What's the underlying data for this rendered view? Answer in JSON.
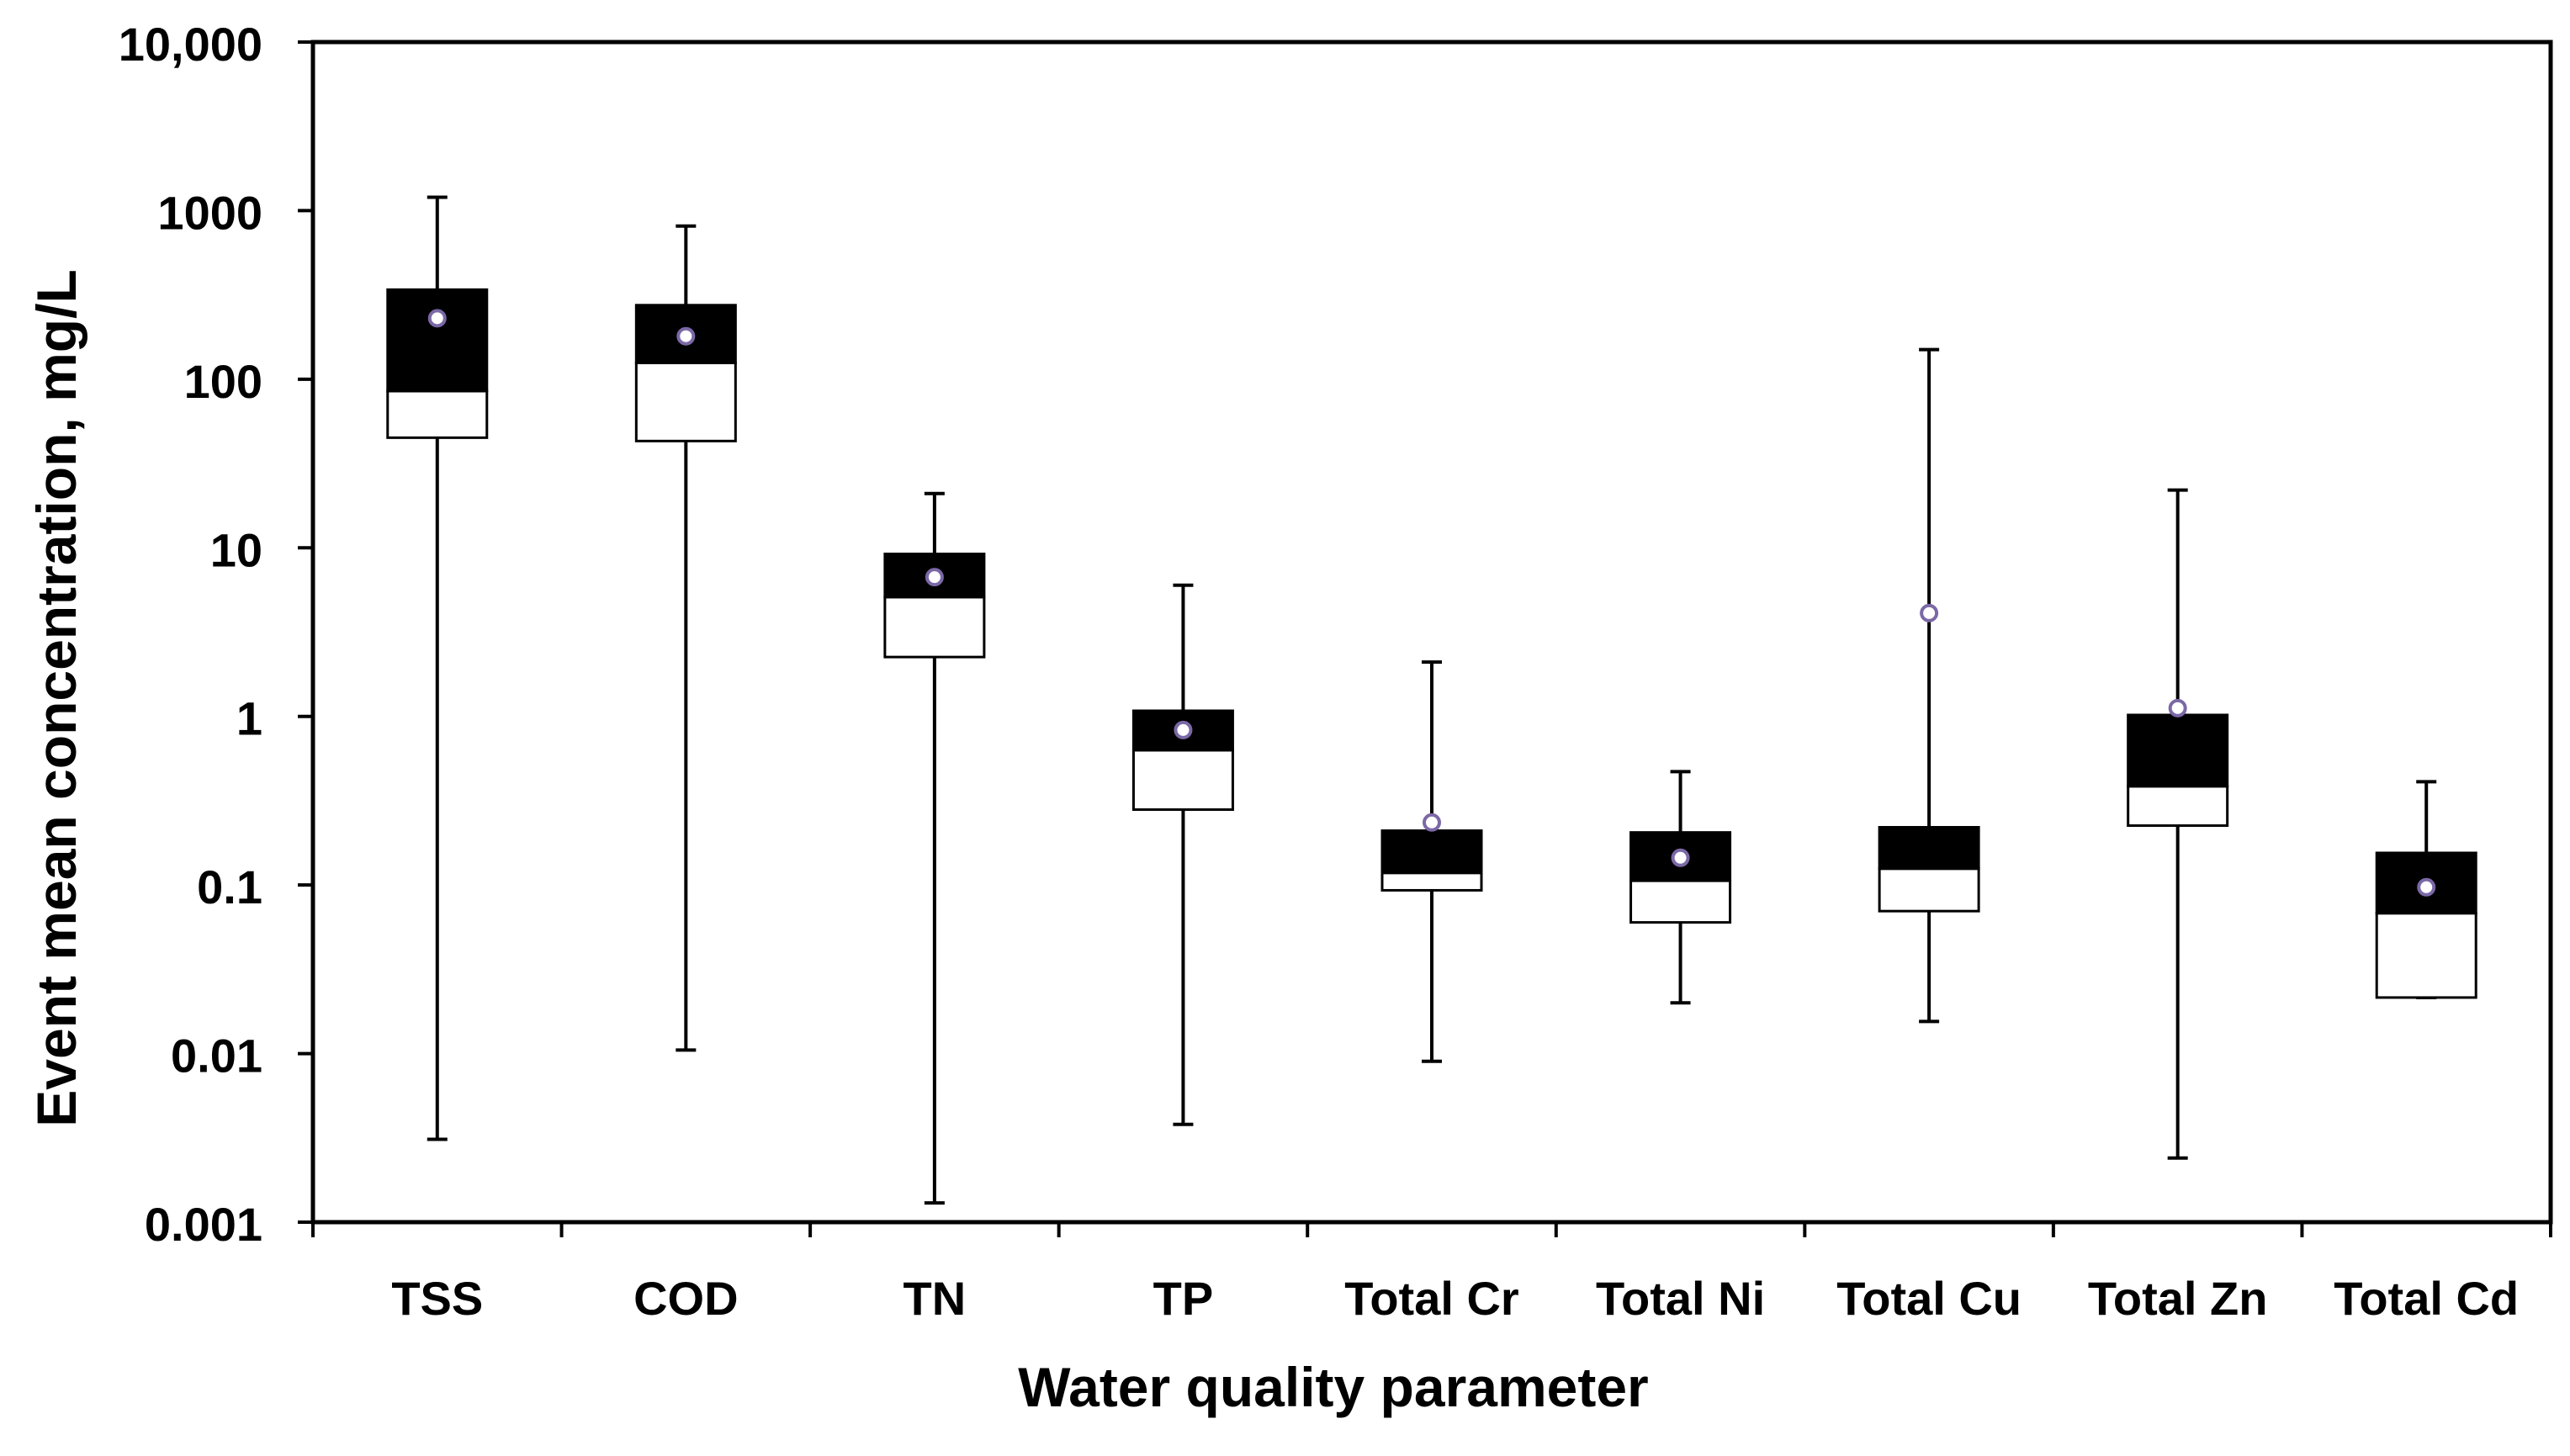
{
  "chart_data": {
    "type": "boxplot",
    "title": "",
    "xlabel": "Water quality parameter",
    "ylabel": "Event mean concentration, mg/L",
    "yscale": "log",
    "ylim": [
      0.001,
      10000
    ],
    "y_tick_labels": [
      "0.001",
      "0.01",
      "0.1",
      "1",
      "10",
      "100",
      "1000",
      "10,000"
    ],
    "y_tick_values": [
      0.001,
      0.01,
      0.1,
      1,
      10,
      100,
      1000,
      10000
    ],
    "categories": [
      "TSS",
      "COD",
      "TN",
      "TP",
      "Total Cr",
      "Total Ni",
      "Total Cu",
      "Total Zn",
      "Total Cd"
    ],
    "series": [
      {
        "name": "TSS",
        "min": 0.0031,
        "q1": 45,
        "median": 85,
        "q3": 340,
        "max": 1200,
        "mean": 230
      },
      {
        "name": "COD",
        "min": 0.0105,
        "q1": 43,
        "median": 125,
        "q3": 275,
        "max": 810,
        "mean": 180
      },
      {
        "name": "TN",
        "min": 0.0013,
        "q1": 2.25,
        "median": 5.1,
        "q3": 9.2,
        "max": 21,
        "mean": 6.7
      },
      {
        "name": "TP",
        "min": 0.0038,
        "q1": 0.28,
        "median": 0.63,
        "q3": 1.08,
        "max": 6.0,
        "mean": 0.83
      },
      {
        "name": "Total Cr",
        "min": 0.009,
        "q1": 0.093,
        "median": 0.118,
        "q3": 0.21,
        "max": 2.1,
        "mean": 0.235
      },
      {
        "name": "Total Ni",
        "min": 0.02,
        "q1": 0.06,
        "median": 0.106,
        "q3": 0.205,
        "max": 0.47,
        "mean": 0.145
      },
      {
        "name": "Total Cu",
        "min": 0.0155,
        "q1": 0.07,
        "median": 0.125,
        "q3": 0.22,
        "max": 150,
        "mean": 4.1
      },
      {
        "name": "Total Zn",
        "min": 0.0024,
        "q1": 0.225,
        "median": 0.385,
        "q3": 1.02,
        "max": 22,
        "mean": 1.12
      },
      {
        "name": "Total Cd",
        "min": 0.0215,
        "q1": 0.0215,
        "median": 0.068,
        "q3": 0.155,
        "max": 0.41,
        "mean": 0.097
      }
    ],
    "box_upper_color": "#000000",
    "box_lower_color": "#ffffff",
    "mean_marker_color": "#ffffff",
    "mean_marker_edge_color": "#7b68a6",
    "legend": "none",
    "grid": false
  }
}
